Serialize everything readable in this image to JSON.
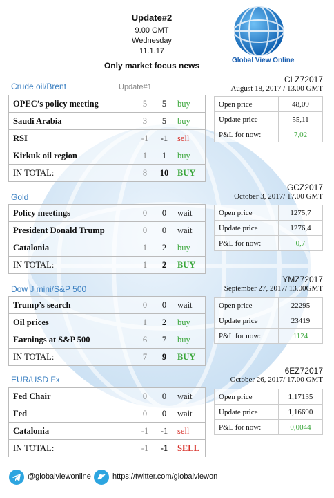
{
  "header": {
    "title": "Update#2",
    "time": "9.00 GMT",
    "day": "Wednesday",
    "date": "11.1.17",
    "subtitle": "Only market focus news",
    "logo": "Global View Online"
  },
  "sections": [
    {
      "title": "Crude oil/Brent",
      "note": "Update#1",
      "rows": [
        {
          "label": "OPEC’s policy meeting",
          "prev": 5,
          "curr": 5,
          "signal": "buy"
        },
        {
          "label": "Saudi Arabia",
          "prev": 3,
          "curr": 5,
          "signal": "buy"
        },
        {
          "label": "RSI",
          "prev": -1,
          "curr": -1,
          "signal": "sell"
        },
        {
          "label": "Kirkuk oil region",
          "prev": 1,
          "curr": 1,
          "signal": "buy"
        }
      ],
      "total": {
        "label": "IN TOTAL:",
        "prev": 8,
        "curr": 10,
        "signal": "BUY"
      },
      "ticker": {
        "code": "CLZ72017",
        "date": "August 18, 2017 / 13.00 GMT",
        "rows": [
          {
            "label": "Open price",
            "value": "48,09"
          },
          {
            "label": "Update price",
            "value": "55,11"
          },
          {
            "label": "P&L for now:",
            "value": "7,02"
          }
        ]
      }
    },
    {
      "title": "Gold",
      "rows": [
        {
          "label": "Policy meetings",
          "prev": 0,
          "curr": 0,
          "signal": "wait"
        },
        {
          "label": "President Donald Trump",
          "prev": 0,
          "curr": 0,
          "signal": "wait"
        },
        {
          "label": "Catalonia",
          "prev": 1,
          "curr": 2,
          "signal": "buy"
        }
      ],
      "total": {
        "label": "IN TOTAL:",
        "prev": 1,
        "curr": 2,
        "signal": "BUY"
      },
      "ticker": {
        "code": "GCZ2017",
        "date": "October 3, 2017/ 17.00 GMT",
        "rows": [
          {
            "label": "Open price",
            "value": "1275,7"
          },
          {
            "label": "Update price",
            "value": "1276,4"
          },
          {
            "label": "P&L for now:",
            "value": "0,7"
          }
        ]
      }
    },
    {
      "title": "Dow J mini/S&P 500",
      "rows": [
        {
          "label": "Trump’s search",
          "prev": 0,
          "curr": 0,
          "signal": "wait"
        },
        {
          "label": "Oil prices",
          "prev": 1,
          "curr": 2,
          "signal": "buy"
        },
        {
          "label": "Earnings at S&P 500",
          "prev": 6,
          "curr": 7,
          "signal": "buy"
        }
      ],
      "total": {
        "label": "IN TOTAL:",
        "prev": 7,
        "curr": 9,
        "signal": "BUY"
      },
      "ticker": {
        "code": "YMZ72017",
        "date": "September 27, 2017/ 13.00GMT",
        "rows": [
          {
            "label": "Open price",
            "value": "22295"
          },
          {
            "label": "Update price",
            "value": "23419"
          },
          {
            "label": "P&L for now:",
            "value": "1124"
          }
        ]
      }
    },
    {
      "title": "EUR/USD Fx",
      "rows": [
        {
          "label": "Fed Chair",
          "prev": 0,
          "curr": 0,
          "signal": "wait"
        },
        {
          "label": "Fed",
          "prev": 0,
          "curr": 0,
          "signal": "wait"
        },
        {
          "label": "Catalonia",
          "prev": -1,
          "curr": -1,
          "signal": "sell"
        }
      ],
      "total": {
        "label": "IN TOTAL:",
        "prev": -1,
        "curr": -1,
        "signal": "SELL"
      },
      "ticker": {
        "code": "6EZ72017",
        "date": "October 26, 2017/ 17.00 GMT",
        "rows": [
          {
            "label": "Open price",
            "value": "1,17135"
          },
          {
            "label": "Update price",
            "value": "1,16690"
          },
          {
            "label": "P&L for now:",
            "value": "0,0044"
          }
        ]
      }
    }
  ],
  "footer": {
    "telegram": "@globalviewonline",
    "twitter": "https://twitter.com/globalviewon"
  }
}
